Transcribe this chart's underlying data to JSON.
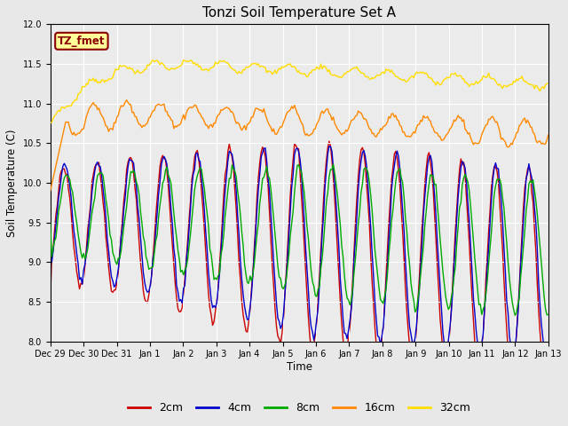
{
  "title": "Tonzi Soil Temperature Set A",
  "xlabel": "Time",
  "ylabel": "Soil Temperature (C)",
  "ylim": [
    8.0,
    12.0
  ],
  "yticks": [
    8.0,
    8.5,
    9.0,
    9.5,
    10.0,
    10.5,
    11.0,
    11.5,
    12.0
  ],
  "background_color": "#e8e8e8",
  "plot_bg_color": "#ebebeb",
  "annotation_text": "TZ_fmet",
  "annotation_bg": "#ffff99",
  "annotation_border": "#8b0000",
  "annotation_text_color": "#8b0000",
  "colors": {
    "2cm": "#cc0000",
    "4cm": "#0000cc",
    "8cm": "#00aa00",
    "16cm": "#ff8800",
    "32cm": "#ffdd00"
  },
  "tick_labels": [
    "Dec 29",
    "Dec 30",
    "Dec 31",
    "Jan 1",
    "Jan 2",
    "Jan 3",
    "Jan 4",
    "Jan 5",
    "Jan 6",
    "Jan 7",
    "Jan 8",
    "Jan 9",
    "Jan 10",
    "Jan 11",
    "Jan 12",
    "Jan 13"
  ],
  "tick_positions": [
    0,
    1,
    2,
    3,
    4,
    5,
    6,
    7,
    8,
    9,
    10,
    11,
    12,
    13,
    14,
    15
  ]
}
